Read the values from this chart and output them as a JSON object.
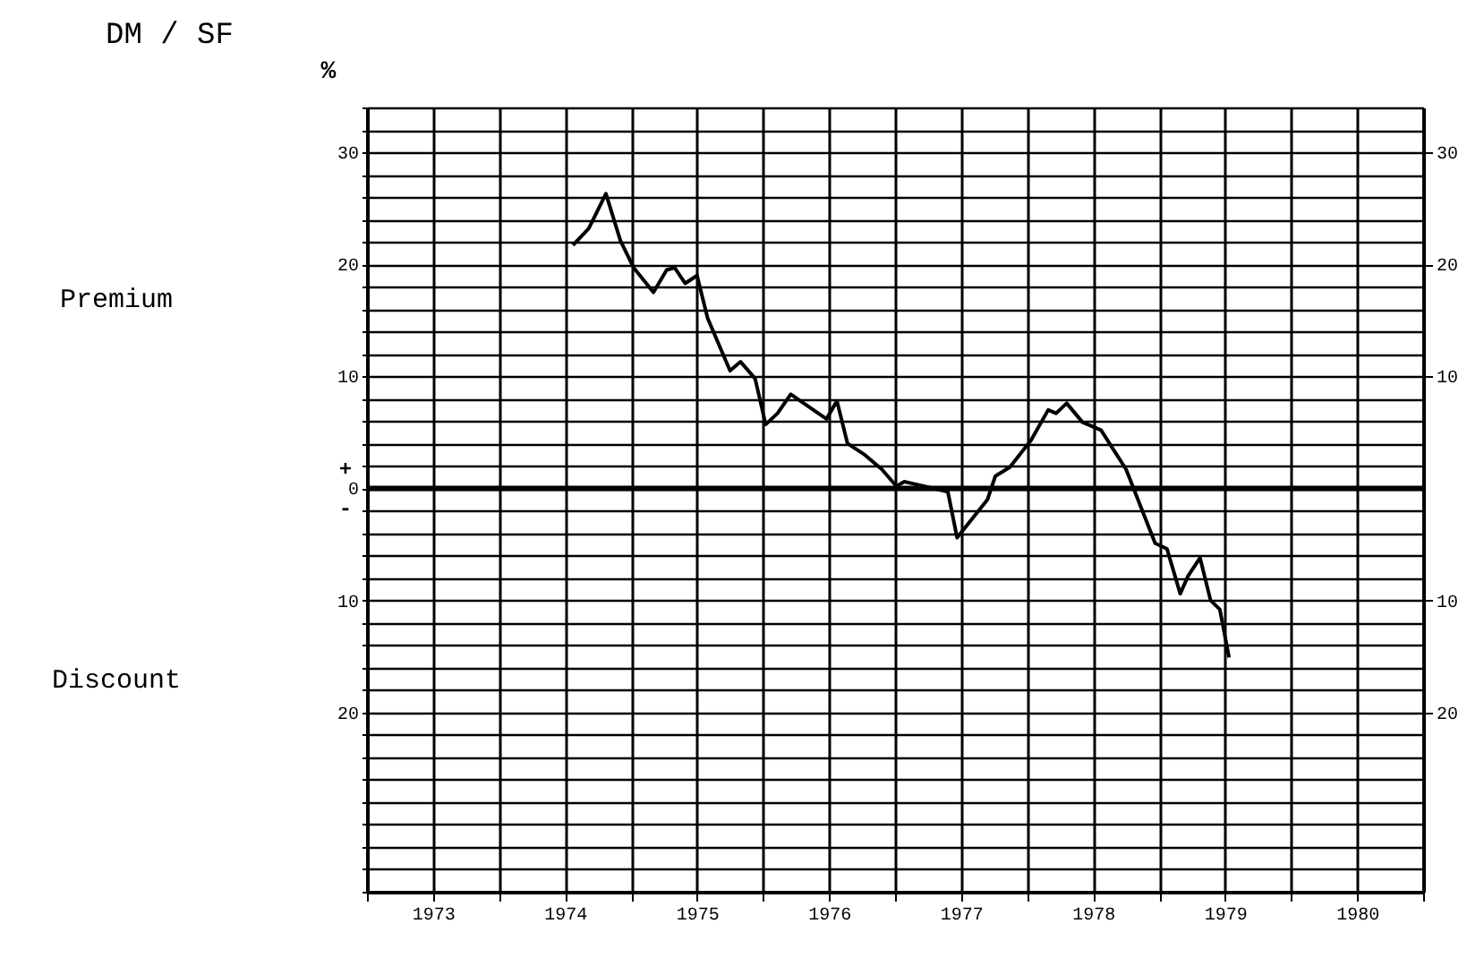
{
  "chart_data": {
    "type": "line",
    "title": "DM / SF",
    "ylabel": "%",
    "annotations": [
      "Premium",
      "Discount",
      "+",
      "-"
    ],
    "x": [
      1974.56,
      1974.68,
      1974.81,
      1974.92,
      1975.02,
      1975.17,
      1975.27,
      1975.33,
      1975.41,
      1975.5,
      1975.58,
      1975.75,
      1975.83,
      1975.94,
      1976.02,
      1976.11,
      1976.21,
      1976.48,
      1976.56,
      1976.64,
      1976.77,
      1976.9,
      1977.01,
      1977.07,
      1977.4,
      1977.47,
      1977.7,
      1977.76,
      1977.87,
      1978.03,
      1978.16,
      1978.22,
      1978.3,
      1978.42,
      1978.56,
      1978.75,
      1978.97,
      1979.06,
      1979.16,
      1979.22,
      1979.31,
      1979.39,
      1979.46,
      1979.53
    ],
    "series": [
      {
        "color": "#000000",
        "values": [
          21.7,
          23.2,
          26.3,
          22.1,
          19.7,
          17.5,
          19.5,
          19.7,
          18.3,
          19.0,
          15.2,
          10.5,
          11.3,
          9.8,
          5.7,
          6.7,
          8.4,
          6.2,
          7.8,
          4.0,
          3.0,
          1.7,
          0.2,
          0.6,
          -0.3,
          -4.4,
          -1.0,
          1.1,
          1.9,
          4.3,
          7.0,
          6.7,
          7.6,
          5.9,
          5.2,
          1.7,
          -4.9,
          -5.4,
          -9.4,
          -7.8,
          -6.2,
          -10.0,
          -10.8,
          -15.1
        ]
      }
    ],
    "xlim": [
      1973,
      1981
    ],
    "xticks": [
      {
        "value": 1973,
        "label": null
      },
      {
        "value": 1973.5,
        "label": "1973"
      },
      {
        "value": 1974,
        "label": null
      },
      {
        "value": 1974.5,
        "label": "1974"
      },
      {
        "value": 1975,
        "label": null
      },
      {
        "value": 1975.5,
        "label": "1975"
      },
      {
        "value": 1976,
        "label": null
      },
      {
        "value": 1976.5,
        "label": "1976"
      },
      {
        "value": 1977,
        "label": null
      },
      {
        "value": 1977.5,
        "label": "1977"
      },
      {
        "value": 1978,
        "label": null
      },
      {
        "value": 1978.5,
        "label": "1978"
      },
      {
        "value": 1979,
        "label": null
      },
      {
        "value": 1979.5,
        "label": "1979"
      },
      {
        "value": 1980,
        "label": null
      },
      {
        "value": 1980.5,
        "label": "1980"
      },
      {
        "value": 1981,
        "label": null
      }
    ],
    "ylim": [
      -36,
      34
    ],
    "yticks": [
      {
        "value": -36,
        "label": null
      },
      {
        "value": -34,
        "label": null
      },
      {
        "value": -32,
        "label": null
      },
      {
        "value": -30,
        "label": null
      },
      {
        "value": -28,
        "label": null
      },
      {
        "value": -26,
        "label": null
      },
      {
        "value": -24,
        "label": null
      },
      {
        "value": -22,
        "label": null
      },
      {
        "value": -20,
        "label": "20"
      },
      {
        "value": -18,
        "label": null
      },
      {
        "value": -16,
        "label": null
      },
      {
        "value": -14,
        "label": null
      },
      {
        "value": -12,
        "label": null
      },
      {
        "value": -10,
        "label": "10"
      },
      {
        "value": -8,
        "label": null
      },
      {
        "value": -6,
        "label": null
      },
      {
        "value": -4,
        "label": null
      },
      {
        "value": -2,
        "label": null
      },
      0,
      {
        "value": 2,
        "label": null
      },
      {
        "value": 4,
        "label": null
      },
      {
        "value": 6,
        "label": null
      },
      {
        "value": 8,
        "label": null
      },
      {
        "value": 10,
        "label": "10"
      },
      {
        "value": 12,
        "label": null
      },
      {
        "value": 14,
        "label": null
      },
      {
        "value": 16,
        "label": null
      },
      {
        "value": 18,
        "label": null
      },
      {
        "value": 20,
        "label": "20"
      },
      {
        "value": 22,
        "label": null
      },
      {
        "value": 24,
        "label": null
      },
      {
        "value": 26,
        "label": null
      },
      {
        "value": 28,
        "label": null
      },
      {
        "value": 30,
        "label": "30"
      },
      {
        "value": 32,
        "label": null
      },
      {
        "value": 34,
        "label": null
      }
    ],
    "y2lim": [
      -36,
      34
    ],
    "y2ticks": [
      {
        "value": -20,
        "label": "20"
      },
      {
        "value": -10,
        "label": "10"
      },
      {
        "value": 10,
        "label": "10"
      },
      {
        "value": 20,
        "label": "20"
      },
      {
        "value": 30,
        "label": "30"
      }
    ],
    "ref_lines": [
      {
        "axis": "y2",
        "value": 0,
        "color": "#000000"
      }
    ],
    "grid": true,
    "marker": "none",
    "line_style": "solid"
  }
}
